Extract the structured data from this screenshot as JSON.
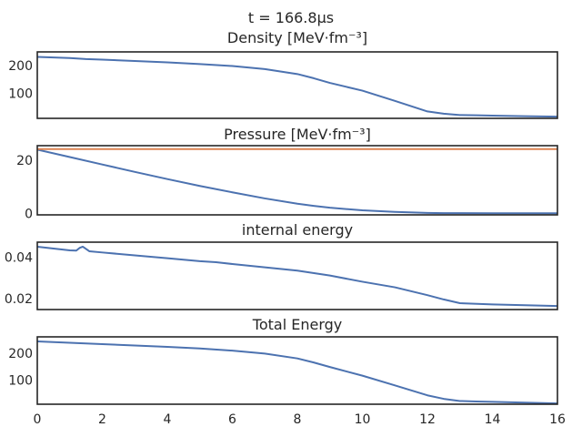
{
  "figure": {
    "suptitle": "t = 166.8μs"
  },
  "colors": {
    "series_blue": "#4c72b0",
    "series_orange": "#dd8452",
    "axes_edge": "#262626",
    "text": "#262626"
  },
  "chart_data": [
    {
      "type": "line",
      "title": "Density [MeV·fm⁻³]",
      "xlabel": "",
      "ylabel": "",
      "xlim": [
        0,
        16
      ],
      "ylim": [
        10,
        250
      ],
      "yticks": [
        100,
        200
      ],
      "xticks_visible": false,
      "grid": false,
      "series": [
        {
          "color": "#4c72b0",
          "x": [
            0,
            1,
            1.5,
            2,
            3,
            4,
            5,
            6,
            7,
            8,
            8.5,
            9,
            10,
            11,
            12,
            12.5,
            13,
            13.5,
            14,
            15,
            16
          ],
          "y": [
            232,
            228,
            224,
            222,
            217,
            212,
            206,
            199,
            188,
            170,
            155,
            138,
            110,
            73,
            35,
            27,
            22,
            21,
            20,
            18,
            16
          ]
        }
      ]
    },
    {
      "type": "line",
      "title": "Pressure [MeV·fm⁻³]",
      "xlabel": "",
      "ylabel": "",
      "xlim": [
        0,
        16
      ],
      "ylim": [
        -0.6,
        25.5
      ],
      "yticks": [
        0,
        20
      ],
      "xticks_visible": false,
      "grid": false,
      "series": [
        {
          "color": "#4c72b0",
          "x": [
            0,
            1,
            2,
            3,
            4,
            5,
            6,
            7,
            8,
            8.5,
            9,
            10,
            11,
            12,
            12.5,
            13,
            14,
            15,
            16
          ],
          "y": [
            24,
            21.2,
            18.4,
            15.6,
            12.9,
            10.3,
            7.9,
            5.6,
            3.6,
            2.8,
            2.1,
            1.1,
            0.5,
            0.15,
            0.05,
            0.03,
            0.02,
            0.01,
            0.0
          ]
        },
        {
          "color": "#dd8452",
          "x": [
            0,
            16
          ],
          "y": [
            24.2,
            24.2
          ]
        }
      ]
    },
    {
      "type": "line",
      "title": "internal energy",
      "xlabel": "",
      "ylabel": "",
      "xlim": [
        0,
        16
      ],
      "ylim": [
        0.0146,
        0.0473
      ],
      "yticks": [
        0.02,
        0.04
      ],
      "xticks_visible": false,
      "grid": false,
      "series": [
        {
          "color": "#4c72b0",
          "x": [
            0,
            0.5,
            1,
            1.2,
            1.3,
            1.4,
            1.5,
            1.6,
            2,
            3,
            4,
            5,
            5.5,
            6,
            7,
            8,
            9,
            10,
            11,
            12,
            12.5,
            13,
            14,
            15,
            16
          ],
          "y": [
            0.0451,
            0.0442,
            0.0433,
            0.0432,
            0.0445,
            0.0451,
            0.044,
            0.0429,
            0.0423,
            0.0409,
            0.0395,
            0.0381,
            0.0376,
            0.0367,
            0.0351,
            0.0335,
            0.0311,
            0.0281,
            0.0254,
            0.0216,
            0.0195,
            0.0177,
            0.0171,
            0.0167,
            0.0163
          ]
        }
      ]
    },
    {
      "type": "line",
      "title": "Total Energy",
      "xlabel": "",
      "ylabel": "",
      "xlim": [
        0,
        16
      ],
      "ylim": [
        10,
        260
      ],
      "yticks": [
        100,
        200
      ],
      "xticks": [
        0,
        2,
        4,
        6,
        8,
        10,
        12,
        14,
        16
      ],
      "xticks_visible": true,
      "grid": false,
      "series": [
        {
          "color": "#4c72b0",
          "x": [
            0,
            1,
            2,
            3,
            4,
            5,
            6,
            7,
            8,
            8.5,
            9,
            10,
            11,
            12,
            12.5,
            13,
            13.5,
            14,
            15,
            16
          ],
          "y": [
            243,
            238,
            233,
            228,
            223,
            217,
            209,
            198,
            180,
            165,
            148,
            116,
            80,
            43,
            30,
            22,
            20,
            19,
            16,
            13
          ]
        }
      ]
    }
  ]
}
